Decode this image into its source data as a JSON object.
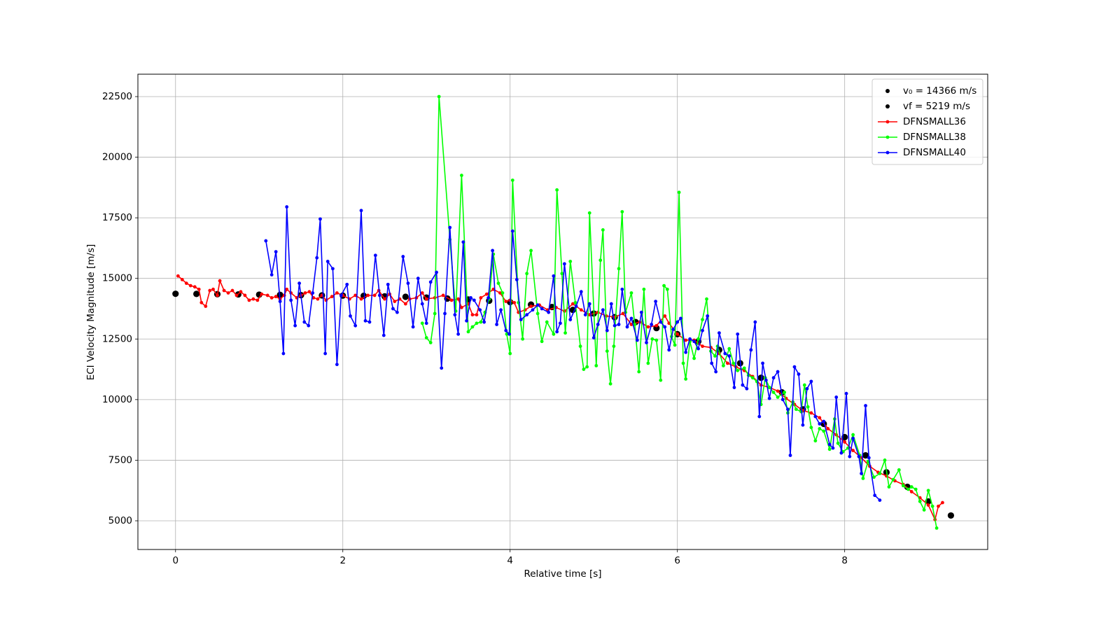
{
  "chart_data": {
    "type": "line",
    "x_label": "Relative time [s]",
    "y_label": "ECI Velocity Magnitude [m/s]",
    "xlim": [
      -0.45,
      9.71
    ],
    "ylim": [
      3816,
      23424
    ],
    "xticks": [
      0,
      2,
      4,
      6,
      8
    ],
    "yticks": [
      5000,
      7500,
      10000,
      12500,
      15000,
      17500,
      20000,
      22500
    ],
    "grid": true,
    "legend": "upper right",
    "series": [
      {
        "name": "v₀ = 14366 m/s",
        "color": "#000000",
        "style": "scatter",
        "x": [
          0,
          0.25,
          0.5,
          0.75,
          1.0,
          1.25,
          1.5,
          1.75,
          2.0,
          2.25,
          2.5,
          2.75,
          3.0,
          3.25,
          3.5,
          3.75,
          4.0,
          4.25,
          4.5,
          4.75,
          5.0,
          5.25,
          5.5,
          5.75,
          6.0,
          6.25,
          6.5,
          6.75,
          7.0,
          7.25,
          7.5,
          7.75,
          8.0,
          8.25,
          8.5,
          8.75,
          9.0
        ],
        "values": [
          14366,
          14360,
          14350,
          14340,
          14330,
          14320,
          14310,
          14300,
          14290,
          14280,
          14260,
          14240,
          14210,
          14170,
          14130,
          14080,
          14020,
          13920,
          13820,
          13700,
          13550,
          13400,
          13200,
          12950,
          12700,
          12400,
          12050,
          11500,
          10900,
          10300,
          9600,
          9000,
          8450,
          7700,
          7000,
          6400,
          5800
        ]
      },
      {
        "name": "vf = 5219 m/s",
        "color": "#000000",
        "style": "scatter",
        "x": [
          9.27
        ],
        "values": [
          5219
        ]
      },
      {
        "name": "DFNSMALL36",
        "color": "#ff0000",
        "style": "line",
        "x": [
          0.03,
          0.08,
          0.13,
          0.18,
          0.23,
          0.28,
          0.31,
          0.36,
          0.41,
          0.45,
          0.5,
          0.53,
          0.58,
          0.63,
          0.68,
          0.73,
          0.78,
          0.83,
          0.88,
          0.93,
          0.98,
          1.03,
          1.1,
          1.15,
          1.2,
          1.25,
          1.3,
          1.33,
          1.38,
          1.45,
          1.5,
          1.55,
          1.6,
          1.65,
          1.7,
          1.75,
          1.8,
          1.87,
          1.93,
          2.0,
          2.08,
          2.15,
          2.22,
          2.3,
          2.38,
          2.43,
          2.5,
          2.56,
          2.62,
          2.68,
          2.75,
          2.8,
          2.88,
          2.95,
          3.0,
          3.1,
          3.2,
          3.3,
          3.38,
          3.42,
          3.5,
          3.55,
          3.6,
          3.65,
          3.72,
          3.8,
          3.88,
          3.95,
          4.0,
          4.05,
          4.1,
          4.18,
          4.25,
          4.35,
          4.45,
          4.55,
          4.65,
          4.75,
          4.85,
          4.95,
          5.05,
          5.15,
          5.25,
          5.35,
          5.45,
          5.55,
          5.65,
          5.75,
          5.85,
          5.9,
          6.0,
          6.1,
          6.2,
          6.3,
          6.4,
          6.5,
          6.6,
          6.7,
          6.8,
          6.9,
          7.0,
          7.1,
          7.2,
          7.3,
          7.4,
          7.5,
          7.6,
          7.7,
          7.8,
          7.9,
          8.0,
          8.1,
          8.2,
          8.3,
          8.4,
          8.5,
          8.6,
          8.7,
          8.8,
          8.9,
          9.0,
          9.08,
          9.12,
          9.17
        ],
        "values": [
          15100,
          14950,
          14800,
          14700,
          14650,
          14550,
          14000,
          13850,
          14500,
          14550,
          14300,
          14900,
          14500,
          14400,
          14500,
          14300,
          14450,
          14300,
          14100,
          14150,
          14100,
          14350,
          14300,
          14200,
          14250,
          14150,
          14300,
          14550,
          14400,
          14200,
          14300,
          14400,
          14450,
          14200,
          14150,
          14300,
          14100,
          14250,
          14400,
          14300,
          14150,
          14300,
          14150,
          14300,
          14300,
          14500,
          14150,
          14350,
          14050,
          14150,
          13950,
          14150,
          14200,
          14400,
          14150,
          14200,
          14300,
          14100,
          14150,
          13800,
          13950,
          13500,
          13500,
          14200,
          14350,
          14550,
          14400,
          14050,
          14100,
          14000,
          13600,
          13700,
          13850,
          13900,
          13700,
          13800,
          13650,
          13950,
          13700,
          13500,
          13600,
          13450,
          13400,
          13550,
          13100,
          13200,
          13000,
          13050,
          13450,
          13150,
          12700,
          12450,
          12450,
          12200,
          12150,
          11900,
          11500,
          11350,
          11200,
          10950,
          10600,
          10500,
          10350,
          10050,
          9800,
          9550,
          9450,
          9250,
          8800,
          8550,
          8250,
          7900,
          7600,
          7250,
          7000,
          6850,
          6650,
          6500,
          6200,
          5950,
          5650,
          5050,
          5600,
          5750
        ]
      },
      {
        "name": "DFNSMALL38",
        "color": "#00ff00",
        "style": "line",
        "x": [
          2.95,
          3.0,
          3.05,
          3.1,
          3.15,
          3.28,
          3.35,
          3.42,
          3.5,
          3.55,
          3.6,
          3.65,
          3.7,
          3.75,
          3.8,
          3.86,
          3.91,
          3.96,
          4.0,
          4.03,
          4.1,
          4.15,
          4.2,
          4.25,
          4.33,
          4.38,
          4.44,
          4.52,
          4.56,
          4.62,
          4.66,
          4.72,
          4.78,
          4.84,
          4.88,
          4.92,
          4.95,
          5.03,
          5.08,
          5.11,
          5.16,
          5.2,
          5.24,
          5.3,
          5.34,
          5.38,
          5.45,
          5.49,
          5.54,
          5.6,
          5.65,
          5.7,
          5.75,
          5.8,
          5.84,
          5.88,
          5.93,
          5.97,
          6.02,
          6.07,
          6.1,
          6.15,
          6.2,
          6.25,
          6.3,
          6.35,
          6.4,
          6.45,
          6.48,
          6.55,
          6.62,
          6.67,
          6.72,
          6.8,
          6.85,
          6.9,
          6.95,
          7.0,
          7.05,
          7.1,
          7.15,
          7.2,
          7.28,
          7.32,
          7.38,
          7.42,
          7.48,
          7.52,
          7.56,
          7.6,
          7.65,
          7.7,
          7.75,
          7.82,
          7.88,
          7.92,
          7.98,
          8.04,
          8.1,
          8.18,
          8.22,
          8.28,
          8.35,
          8.42,
          8.48,
          8.53,
          8.58,
          8.65,
          8.7,
          8.76,
          8.8,
          8.85,
          8.9,
          8.95,
          9.0,
          9.05,
          9.1
        ],
        "values": [
          13150,
          12550,
          12350,
          13550,
          22500,
          16600,
          13650,
          19250,
          12800,
          13000,
          13150,
          13200,
          13600,
          14150,
          16000,
          14800,
          14400,
          12700,
          11900,
          19050,
          14000,
          12500,
          15200,
          16150,
          13550,
          12400,
          13200,
          12700,
          18650,
          15200,
          12750,
          15700,
          14000,
          12200,
          11250,
          11350,
          17700,
          11400,
          15750,
          17000,
          12000,
          10650,
          12200,
          15400,
          17750,
          13600,
          14400,
          13100,
          11150,
          14550,
          11500,
          12500,
          12450,
          10800,
          14700,
          14550,
          12600,
          12250,
          18550,
          11500,
          10850,
          12400,
          11700,
          12500,
          13300,
          14150,
          12000,
          11800,
          12200,
          11400,
          12100,
          11500,
          11200,
          11300,
          11000,
          10900,
          10750,
          9800,
          10900,
          10500,
          10300,
          10100,
          10300,
          9450,
          9900,
          9600,
          9500,
          10600,
          9700,
          8850,
          8300,
          8800,
          8700,
          7950,
          9200,
          8200,
          7850,
          8000,
          8550,
          7700,
          6750,
          7450,
          6800,
          6950,
          7500,
          6400,
          6700,
          7100,
          6450,
          6300,
          6400,
          6300,
          5800,
          5450,
          6250,
          5600,
          4700
        ]
      },
      {
        "name": "DFNSMALL40",
        "color": "#0000ff",
        "style": "line",
        "x": [
          1.08,
          1.15,
          1.2,
          1.25,
          1.29,
          1.33,
          1.38,
          1.43,
          1.48,
          1.54,
          1.59,
          1.64,
          1.69,
          1.73,
          1.79,
          1.82,
          1.88,
          1.93,
          1.98,
          2.05,
          2.09,
          2.15,
          2.22,
          2.27,
          2.32,
          2.39,
          2.44,
          2.49,
          2.54,
          2.6,
          2.65,
          2.72,
          2.78,
          2.84,
          2.9,
          2.95,
          3.0,
          3.05,
          3.12,
          3.18,
          3.22,
          3.28,
          3.34,
          3.38,
          3.44,
          3.48,
          3.53,
          3.57,
          3.64,
          3.69,
          3.74,
          3.79,
          3.84,
          3.89,
          3.95,
          3.99,
          4.03,
          4.08,
          4.13,
          4.2,
          4.27,
          4.33,
          4.38,
          4.46,
          4.52,
          4.56,
          4.6,
          4.65,
          4.72,
          4.79,
          4.85,
          4.9,
          4.95,
          5.0,
          5.05,
          5.11,
          5.16,
          5.21,
          5.25,
          5.3,
          5.34,
          5.4,
          5.45,
          5.52,
          5.57,
          5.63,
          5.69,
          5.74,
          5.8,
          5.85,
          5.9,
          5.95,
          6.0,
          6.04,
          6.1,
          6.15,
          6.2,
          6.25,
          6.3,
          6.36,
          6.41,
          6.46,
          6.5,
          6.57,
          6.62,
          6.68,
          6.72,
          6.78,
          6.83,
          6.88,
          6.93,
          6.98,
          7.02,
          7.06,
          7.1,
          7.15,
          7.2,
          7.26,
          7.32,
          7.35,
          7.4,
          7.45,
          7.5,
          7.55,
          7.6,
          7.65,
          7.7,
          7.75,
          7.82,
          7.86,
          7.9,
          7.96,
          8.02,
          8.06,
          8.1,
          8.17,
          8.2,
          8.25,
          8.29,
          8.36,
          8.42
        ],
        "values": [
          16550,
          15150,
          16100,
          14050,
          11900,
          17950,
          14100,
          13050,
          14800,
          13200,
          13050,
          14400,
          15850,
          17450,
          11900,
          15700,
          15400,
          11450,
          14300,
          14750,
          13450,
          13050,
          17800,
          13250,
          13200,
          15950,
          14300,
          12650,
          14750,
          13750,
          13600,
          15900,
          14800,
          13000,
          15000,
          13950,
          13150,
          14850,
          15250,
          11300,
          13550,
          17100,
          13500,
          12700,
          16500,
          13250,
          14200,
          14100,
          13700,
          13200,
          14200,
          16150,
          13100,
          13700,
          12850,
          12700,
          16950,
          14950,
          13300,
          13500,
          13700,
          13900,
          13750,
          13600,
          15100,
          12800,
          13150,
          15600,
          13300,
          13850,
          14450,
          13500,
          13950,
          12550,
          13100,
          13700,
          12850,
          13950,
          13050,
          13100,
          14550,
          13000,
          13350,
          12450,
          13600,
          12350,
          13100,
          14050,
          13200,
          13000,
          12050,
          12900,
          13200,
          13350,
          11950,
          12500,
          12400,
          12100,
          12850,
          13450,
          11500,
          11150,
          12750,
          11900,
          11800,
          10500,
          12700,
          10600,
          10450,
          12050,
          13200,
          9300,
          11500,
          10800,
          10050,
          10900,
          11150,
          10000,
          9600,
          7700,
          11350,
          11050,
          8950,
          10450,
          10750,
          9300,
          9000,
          9100,
          8150,
          8000,
          10100,
          7800,
          10250,
          7650,
          8400,
          7650,
          6950,
          9750,
          7600,
          6050,
          5850
        ]
      }
    ]
  }
}
